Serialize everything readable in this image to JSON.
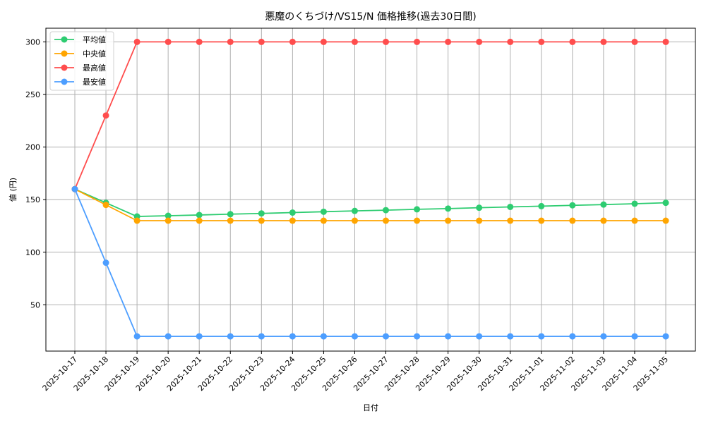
{
  "chart_data": {
    "type": "line",
    "title": "悪魔のくちづけ/VS15/N 価格推移(過去30日間)",
    "xlabel": "日付",
    "ylabel": "値 (円)",
    "ylim": [
      6,
      313
    ],
    "yticks": [
      50,
      100,
      150,
      200,
      250,
      300
    ],
    "grid": true,
    "legend_position": "upper left",
    "categories": [
      "2025-10-17",
      "2025-10-18",
      "2025-10-19",
      "2025-10-20",
      "2025-10-21",
      "2025-10-22",
      "2025-10-23",
      "2025-10-24",
      "2025-10-25",
      "2025-10-26",
      "2025-10-27",
      "2025-10-28",
      "2025-10-29",
      "2025-10-30",
      "2025-10-31",
      "2025-11-01",
      "2025-11-02",
      "2025-11-03",
      "2025-11-04",
      "2025-11-05"
    ],
    "series": [
      {
        "name": "平均値",
        "color": "#2ecc71",
        "values": [
          160,
          147,
          134,
          134.7,
          135.4,
          136.2,
          136.9,
          137.7,
          138.5,
          139.3,
          140.0,
          140.8,
          141.5,
          142.3,
          143.1,
          143.8,
          144.6,
          145.3,
          146.1,
          147
        ]
      },
      {
        "name": "中央値",
        "color": "#ffa500",
        "values": [
          160,
          145,
          130,
          130,
          130,
          130,
          130,
          130,
          130,
          130,
          130,
          130,
          130,
          130,
          130,
          130,
          130,
          130,
          130,
          130
        ]
      },
      {
        "name": "最高値",
        "color": "#ff4d4d",
        "values": [
          160,
          230,
          300,
          300,
          300,
          300,
          300,
          300,
          300,
          300,
          300,
          300,
          300,
          300,
          300,
          300,
          300,
          300,
          300,
          300
        ]
      },
      {
        "name": "最安値",
        "color": "#4d9eff",
        "values": [
          160,
          90,
          20,
          20,
          20,
          20,
          20,
          20,
          20,
          20,
          20,
          20,
          20,
          20,
          20,
          20,
          20,
          20,
          20,
          20
        ]
      }
    ]
  }
}
